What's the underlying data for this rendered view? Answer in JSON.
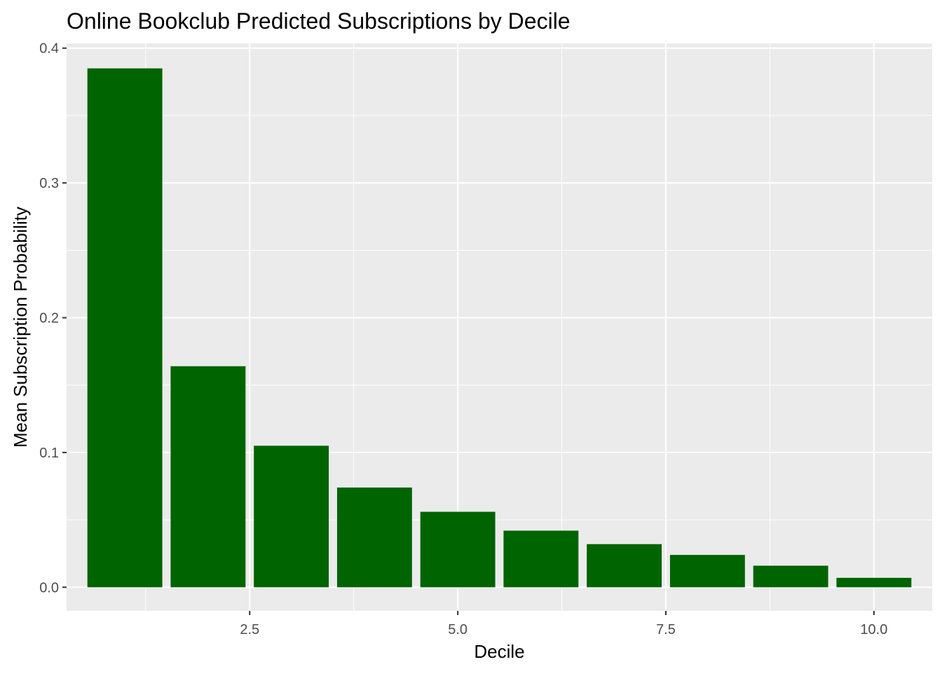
{
  "chart_data": {
    "type": "bar",
    "title": "Online Bookclub Predicted Subscriptions by Decile",
    "xlabel": "Decile",
    "ylabel": "Mean Subscription Probability",
    "x": [
      1,
      2,
      3,
      4,
      5,
      6,
      7,
      8,
      9,
      10
    ],
    "values": [
      0.385,
      0.164,
      0.105,
      0.074,
      0.056,
      0.042,
      0.032,
      0.024,
      0.016,
      0.007
    ],
    "xlim": [
      0.3,
      10.7
    ],
    "ylim": [
      -0.0175,
      0.4035
    ],
    "x_ticks": [
      2.5,
      5.0,
      7.5,
      10.0
    ],
    "x_tick_labels": [
      "2.5",
      "5.0",
      "7.5",
      "10.0"
    ],
    "y_ticks": [
      0.0,
      0.1,
      0.2,
      0.3,
      0.4
    ],
    "y_tick_labels": [
      "0.0",
      "0.1",
      "0.2",
      "0.3",
      "0.4"
    ],
    "bar_width": 0.9,
    "grid": true,
    "legend": "none",
    "colors": {
      "bar": "#006400",
      "panel_background": "#ebebeb",
      "grid_line": "#ffffff",
      "tick_text": "#4d4d4d",
      "axis_text": "#000000"
    }
  }
}
